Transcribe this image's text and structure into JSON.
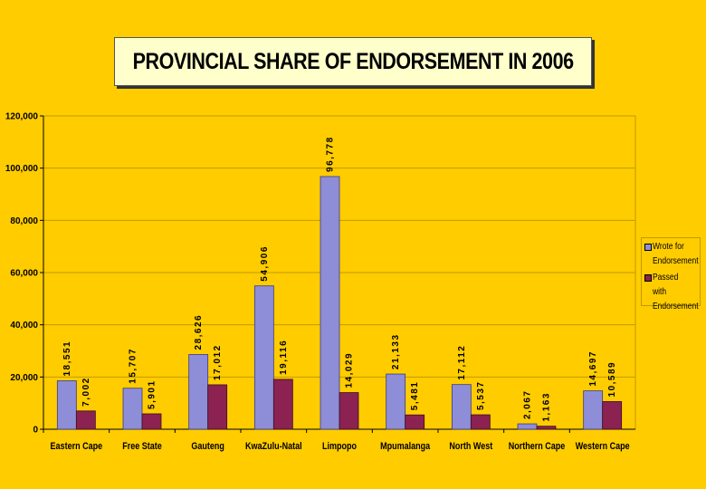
{
  "title": "PROVINCIAL SHARE OF ENDORSEMENT IN 2006",
  "colors": {
    "background": "#FFCC00",
    "series1": "#8E8ED8",
    "series2": "#8B2252",
    "grid": "#C09A00"
  },
  "chart_data": {
    "type": "bar",
    "title": "PROVINCIAL SHARE OF ENDORSEMENT IN 2006",
    "categories": [
      "Eastern Cape",
      "Free State",
      "Gauteng",
      "KwaZulu-Natal",
      "Limpopo",
      "Mpumalanga",
      "North West",
      "Northern Cape",
      "Western Cape"
    ],
    "series": [
      {
        "name": "Wrote for Endorsement",
        "values": [
          18551,
          15707,
          28626,
          54906,
          96778,
          21133,
          17112,
          2067,
          14697
        ],
        "labels": [
          "18,551",
          "15,707",
          "28,626",
          "54,906",
          "96,778",
          "21,133",
          "17,112",
          "2,067",
          "14,697"
        ]
      },
      {
        "name": "Passed with Endorsement",
        "values": [
          7002,
          5901,
          17012,
          19116,
          14029,
          5481,
          5537,
          1163,
          10589
        ],
        "labels": [
          "7,002",
          "5,901",
          "17,012",
          "19,116",
          "14,029",
          "5,481",
          "5,537",
          "1,163",
          "10,589"
        ]
      }
    ],
    "ylim": [
      0,
      120000
    ],
    "yticks": [
      0,
      20000,
      40000,
      60000,
      80000,
      100000,
      120000
    ],
    "ytick_labels": [
      "0",
      "20,000",
      "40,000",
      "60,000",
      "80,000",
      "100,000",
      "120,000"
    ],
    "grid": true,
    "legend_position": "right"
  },
  "legend": {
    "items": [
      {
        "label": "Wrote for Endorsement"
      },
      {
        "label": "Passed with Endorsement"
      }
    ]
  }
}
